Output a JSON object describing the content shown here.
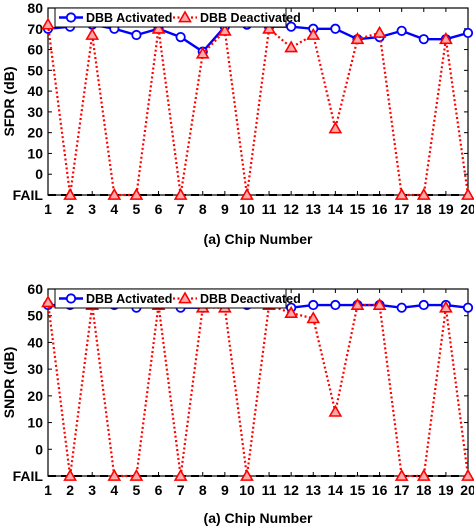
{
  "chart_data": [
    {
      "type": "line",
      "title": "",
      "xlabel": "(a) Chip Number",
      "ylabel": "SFDR (dB)",
      "x": [
        1,
        2,
        3,
        4,
        5,
        6,
        7,
        8,
        9,
        10,
        11,
        12,
        13,
        14,
        15,
        16,
        17,
        18,
        19,
        20
      ],
      "xlim": [
        1,
        20
      ],
      "ylim": [
        -10,
        80
      ],
      "yticks": [
        0,
        10,
        20,
        30,
        40,
        50,
        60,
        70,
        80
      ],
      "fail_label": "FAIL",
      "fail_value": -10,
      "grid": false,
      "legend_position": "top",
      "series": [
        {
          "name": "DBB Activated",
          "color": "#0000ff",
          "line_style": "solid",
          "marker": "circle",
          "values": [
            70,
            71,
            72,
            70,
            67,
            70,
            66,
            59,
            71,
            72,
            71,
            71,
            70,
            70,
            65,
            66,
            69,
            65,
            65,
            68
          ]
        },
        {
          "name": "DBB Deactivated",
          "color": "#ff0000",
          "line_style": "dotted",
          "marker": "triangle",
          "values": [
            72,
            "FAIL",
            67,
            "FAIL",
            "FAIL",
            70,
            "FAIL",
            58,
            69,
            "FAIL",
            70,
            61,
            67,
            22,
            65,
            68,
            "FAIL",
            "FAIL",
            65,
            "FAIL"
          ]
        }
      ]
    },
    {
      "type": "line",
      "title": "",
      "xlabel": "(a) Chip Number",
      "ylabel": "SNDR (dB)",
      "x": [
        1,
        2,
        3,
        4,
        5,
        6,
        7,
        8,
        9,
        10,
        11,
        12,
        13,
        14,
        15,
        16,
        17,
        18,
        19,
        20
      ],
      "xlim": [
        1,
        20
      ],
      "ylim": [
        -10,
        60
      ],
      "yticks": [
        0,
        10,
        20,
        30,
        40,
        50,
        60
      ],
      "fail_label": "FAIL",
      "fail_value": -10,
      "grid": false,
      "legend_position": "top",
      "series": [
        {
          "name": "DBB Activated",
          "color": "#0000ff",
          "line_style": "solid",
          "marker": "circle",
          "values": [
            54,
            54,
            54,
            54,
            53,
            54,
            53,
            53,
            54,
            54,
            54,
            53,
            54,
            54,
            54,
            54,
            53,
            54,
            54,
            53
          ]
        },
        {
          "name": "DBB Deactivated",
          "color": "#ff0000",
          "line_style": "dotted",
          "marker": "triangle",
          "values": [
            55,
            "FAIL",
            54,
            "FAIL",
            "FAIL",
            54,
            "FAIL",
            53,
            53,
            "FAIL",
            54,
            51,
            49,
            14,
            54,
            54,
            "FAIL",
            "FAIL",
            53,
            "FAIL"
          ]
        }
      ]
    }
  ]
}
